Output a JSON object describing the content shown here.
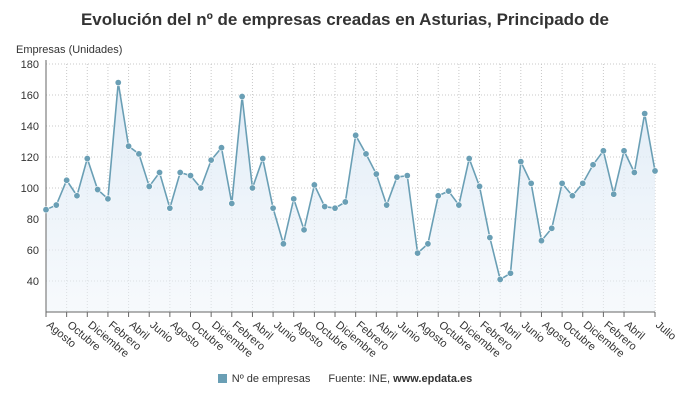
{
  "chart_data": {
    "type": "area",
    "title": "Evolución del nº de empresas creadas en Asturias, Principado de",
    "ylabel": "Empresas (Unidades)",
    "xlabel": "",
    "ylim": [
      20,
      180
    ],
    "y_ticks": [
      40,
      60,
      80,
      100,
      120,
      140,
      160,
      180
    ],
    "x_tick_labels": [
      "Agosto",
      "Octubre",
      "Diciembre",
      "Febrero",
      "Abril",
      "Junio",
      "Agosto",
      "Octubre",
      "Diciembre",
      "Febrero",
      "Abril",
      "Junio",
      "Agosto",
      "Octubre",
      "Diciembre",
      "Febrero",
      "Abril",
      "Junio",
      "Agosto",
      "Octubre",
      "Diciembre",
      "Febrero",
      "Abril",
      "Junio",
      "Agosto",
      "Octubre",
      "Diciembre",
      "Febrero",
      "Abril",
      "Julio"
    ],
    "x_tick_index": [
      0,
      2,
      4,
      6,
      8,
      10,
      12,
      14,
      16,
      18,
      20,
      22,
      24,
      26,
      28,
      30,
      32,
      34,
      36,
      38,
      40,
      42,
      44,
      46,
      48,
      50,
      52,
      54,
      56,
      59
    ],
    "grid": true,
    "legend_position": "bottom",
    "series": [
      {
        "name": "Nº de empresas",
        "color": "#6a9fb5",
        "values": [
          86,
          89,
          105,
          95,
          119,
          99,
          93,
          168,
          127,
          122,
          101,
          110,
          87,
          110,
          108,
          100,
          118,
          126,
          90,
          159,
          100,
          119,
          87,
          64,
          93,
          73,
          102,
          88,
          87,
          91,
          134,
          122,
          109,
          89,
          107,
          108,
          58,
          64,
          95,
          98,
          89,
          119,
          101,
          68,
          41,
          45,
          117,
          103,
          66,
          74,
          103,
          95,
          103,
          115,
          124,
          96,
          124,
          110,
          148,
          111
        ]
      }
    ]
  },
  "source": {
    "label": "Fuente: INE, ",
    "site": "www.epdata.es"
  }
}
